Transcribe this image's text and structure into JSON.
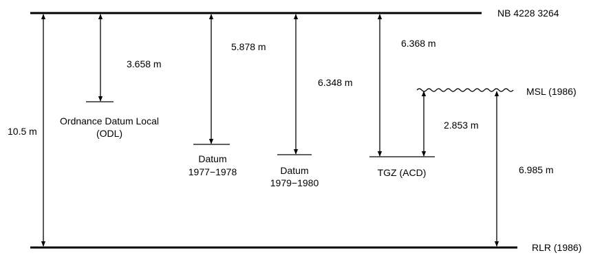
{
  "reference_levels": {
    "benchmark": "NB 4228 3264",
    "msl": "MSL (1986)",
    "rlr": "RLR (1986)"
  },
  "datums": {
    "odl_line1": "Ordnance Datum Local",
    "odl_line2": "(ODL)",
    "d7778_line1": "Datum",
    "d7778_line2": "1977−1978",
    "d7980_line1": "Datum",
    "d7980_line2": "1979−1980",
    "tgz": "TGZ (ACD)"
  },
  "measurements": {
    "total": "10.5 m",
    "nb_to_odl": "3.658 m",
    "nb_to_datum_1977_1978": "5.878 m",
    "nb_to_datum_1979_1980": "6.348 m",
    "nb_to_tgz": "6.368 m",
    "tgz_to_msl": "2.853 m",
    "rlr_to_msl": "6.985 m"
  },
  "colors": {
    "ink": "#000000",
    "background": "#ffffff"
  }
}
